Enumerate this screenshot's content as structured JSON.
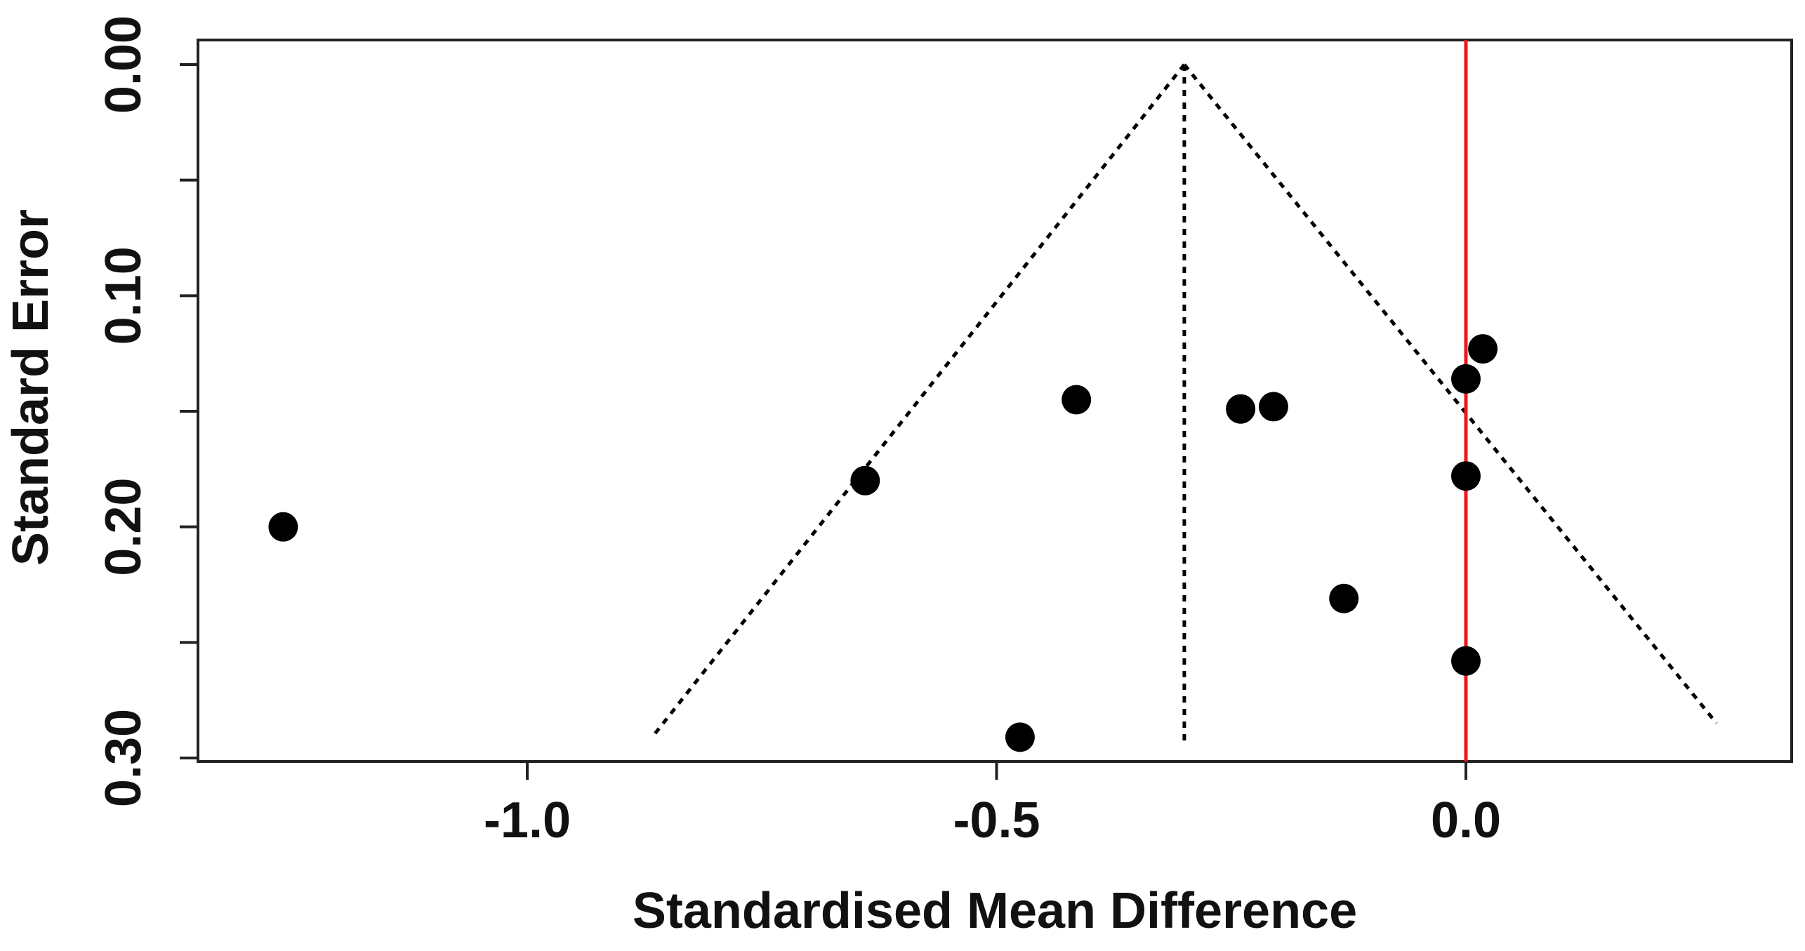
{
  "chart_data": {
    "type": "scatter",
    "title": "",
    "xlabel": "Standardised Mean Difference",
    "ylabel": "Standard Error",
    "xlim": [
      -1.35,
      0.35
    ],
    "ylim": [
      0.3,
      0.0
    ],
    "y_reversed": true,
    "x_ticks": [
      -1.0,
      -0.5,
      0.0
    ],
    "x_tick_labels": [
      "-1.0",
      "-0.5",
      "0.0"
    ],
    "y_ticks": [
      0.0,
      0.05,
      0.1,
      0.15,
      0.2,
      0.25,
      0.3
    ],
    "y_tick_labels": [
      "0.00",
      "0.10",
      "0.20",
      "0.30"
    ],
    "y_labeled_ticks": [
      0.0,
      0.1,
      0.2,
      0.3
    ],
    "grid": false,
    "points": [
      {
        "x": -1.26,
        "y": 0.2
      },
      {
        "x": -0.64,
        "y": 0.18
      },
      {
        "x": -0.415,
        "y": 0.145
      },
      {
        "x": -0.475,
        "y": 0.291
      },
      {
        "x": -0.24,
        "y": 0.149
      },
      {
        "x": -0.205,
        "y": 0.148
      },
      {
        "x": -0.13,
        "y": 0.231
      },
      {
        "x": 0.018,
        "y": 0.123
      },
      {
        "x": 0.0,
        "y": 0.136
      },
      {
        "x": 0.0,
        "y": 0.178
      },
      {
        "x": 0.0,
        "y": 0.258
      }
    ],
    "funnel": {
      "center_x": -0.3,
      "apex_y": 0.0,
      "left_base": {
        "x": -0.865,
        "y": 0.29
      },
      "right_base": {
        "x": 0.267,
        "y": 0.285
      },
      "line_style": "dotted",
      "color": "#000000"
    },
    "reference_line": {
      "x": 0.0,
      "color": "#e8191c"
    },
    "point_color": "#000000"
  }
}
